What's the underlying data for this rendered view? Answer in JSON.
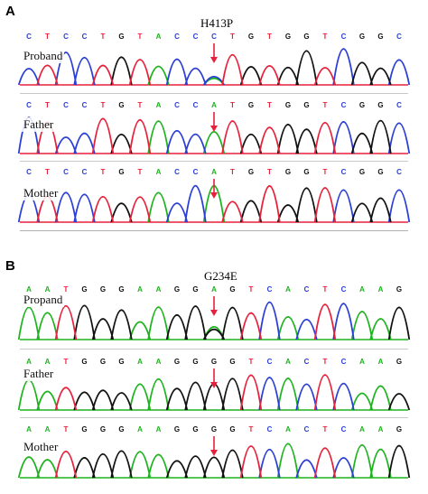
{
  "colors": {
    "A": "#1db31d",
    "C": "#2b3fd6",
    "G": "#111111",
    "T": "#e8213b",
    "arrow": "#e8213b"
  },
  "panels": [
    {
      "letter": "A",
      "mutation": "H413P",
      "traces": [
        {
          "label": "Proband",
          "seq": "CTCCTGTACCCTGTGGTCGGC",
          "arrow_index": 10
        },
        {
          "label": "Father",
          "seq": "CTCCTGTACCATGTGGTCGGC",
          "arrow_index": 10
        },
        {
          "label": "Mother",
          "seq": "CTCCTGTACCATGTGGTCGGC",
          "arrow_index": 10
        }
      ]
    },
    {
      "letter": "B",
      "mutation": "G234E",
      "traces": [
        {
          "label": "Propand",
          "seq": "AATGGGAAGGAGTCACTCAAG",
          "arrow_index": 10
        },
        {
          "label": "Father",
          "seq": "AATGGGAAGGGGTCACTCAAG",
          "arrow_index": 10
        },
        {
          "label": "Mother",
          "seq": "AATGGGAAGGGGTCACTCAAG",
          "arrow_index": 10
        }
      ]
    }
  ]
}
